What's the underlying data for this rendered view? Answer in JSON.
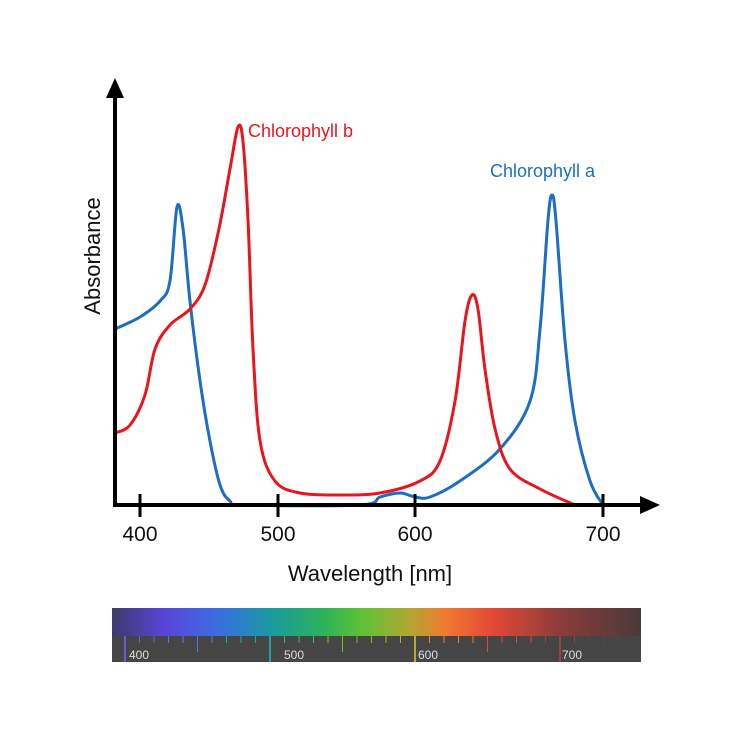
{
  "chart_data": {
    "type": "line",
    "title": "",
    "xlabel": "Wavelength [nm]",
    "ylabel": "Absorbance",
    "x_ticks": [
      400,
      500,
      600,
      700
    ],
    "xlim": [
      382,
      740
    ],
    "ylim": [
      0,
      1
    ],
    "y_ticks": [],
    "grid": false,
    "legend": "inline labels",
    "series": [
      {
        "name": "Chlorophyll a",
        "color": "#1b6ec2",
        "x": [
          382,
          400,
          414.5,
          421.7,
          426.8,
          431.2,
          436.2,
          443.5,
          450.7,
          458,
          465.2,
          476,
          559.9,
          574.5,
          589.1,
          600,
          608,
          623.9,
          645.2,
          661.2,
          666.5,
          670.7,
          672.9,
          675,
          679.8,
          685.1,
          693.1,
          700
        ],
        "y": [
          0.44,
          0.47,
          0.51,
          0.56,
          0.745,
          0.69,
          0.51,
          0.31,
          0.16,
          0.05,
          0.01,
          0,
          0,
          0.02,
          0.03,
          0.02,
          0.02,
          0.06,
          0.14,
          0.26,
          0.44,
          0.71,
          0.775,
          0.71,
          0.41,
          0.21,
          0.06,
          0
        ]
      },
      {
        "name": "Chlorophyll b",
        "color": "#e8161c",
        "x": [
          382,
          392.8,
          403.6,
          410.9,
          421.7,
          436.2,
          447.1,
          457.2,
          465.2,
          471,
          474.6,
          478.3,
          481.9,
          487,
          497.8,
          516.1,
          545.3,
          574.5,
          602.7,
          613.3,
          621.3,
          626.6,
          630.3,
          633.5,
          637.2,
          642.6,
          650.5,
          666.5,
          685.1
        ],
        "y": [
          0.18,
          0.2,
          0.275,
          0.39,
          0.45,
          0.49,
          0.55,
          0.69,
          0.84,
          0.945,
          0.91,
          0.71,
          0.39,
          0.16,
          0.06,
          0.03,
          0.025,
          0.03,
          0.06,
          0.11,
          0.26,
          0.46,
          0.525,
          0.49,
          0.34,
          0.19,
          0.09,
          0.04,
          0
        ]
      }
    ],
    "spectrum_bar": {
      "tick_labels": [
        "400",
        "500",
        "600",
        "700"
      ]
    }
  }
}
